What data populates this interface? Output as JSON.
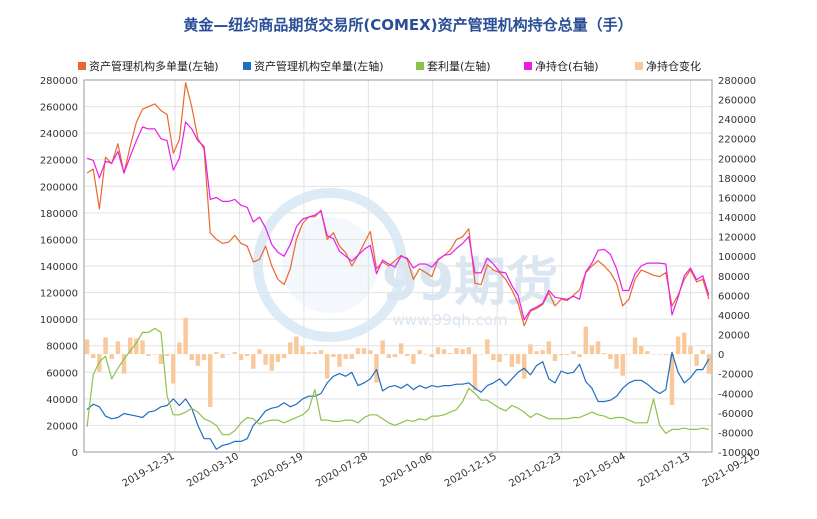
{
  "chart_data": {
    "type": "bar+line",
    "title": "黄金—纽约商品期货交易所(COMEX)资产管理机构持仓总量（手）",
    "watermark": "99期货",
    "watermark_url": "www.99qh.com",
    "legend_position": "top",
    "grid": true,
    "x_tick_labels": [
      "2019-12-31",
      "2020-03-10",
      "2020-05-19",
      "2020-07-28",
      "2020-10-06",
      "2020-12-15",
      "2021-02-23",
      "2021-05-04",
      "2021-07-13",
      "2021-09-21"
    ],
    "left_axis": {
      "min": 0,
      "max": 280000,
      "step": 20000
    },
    "right_axis": {
      "min": -100000,
      "max": 280000,
      "step": 20000
    },
    "series": [
      {
        "name": "资产管理机构多单量(左轴)",
        "color": "#e8692e",
        "type": "line",
        "axis": "left",
        "values": [
          210000,
          213000,
          183000,
          222000,
          217000,
          232000,
          210000,
          230000,
          248000,
          258000,
          260000,
          262000,
          257000,
          254000,
          225000,
          235000,
          278000,
          260000,
          236000,
          228000,
          165000,
          160000,
          157000,
          158000,
          163000,
          157000,
          155000,
          143000,
          145000,
          155000,
          140000,
          130000,
          126000,
          138000,
          160000,
          172000,
          177000,
          177000,
          182000,
          160000,
          165000,
          155000,
          150000,
          140000,
          148000,
          157000,
          166000,
          138000,
          143000,
          140000,
          144000,
          148000,
          145000,
          130000,
          138000,
          135000,
          132000,
          145000,
          148000,
          152000,
          160000,
          162000,
          168000,
          127000,
          126000,
          141000,
          137000,
          135000,
          130000,
          122000,
          112000,
          95000,
          106000,
          108000,
          111000,
          120000,
          110000,
          115000,
          114000,
          118000,
          122000,
          135000,
          140000,
          144000,
          140000,
          135000,
          127000,
          110000,
          115000,
          130000,
          137000,
          135000,
          133000,
          132000,
          135000,
          110000,
          118000,
          130000,
          137000,
          128000,
          130000,
          115000
        ]
      },
      {
        "name": "资产管理机构空单量(左轴)",
        "color": "#1f6fbf",
        "type": "line",
        "axis": "left",
        "values": [
          32000,
          36000,
          34000,
          27000,
          25000,
          26000,
          29000,
          28000,
          27000,
          26000,
          30000,
          31000,
          34000,
          35000,
          40000,
          35000,
          40000,
          33000,
          20000,
          10000,
          10000,
          2000,
          5000,
          6000,
          8000,
          8000,
          10000,
          20000,
          25000,
          31000,
          33000,
          34000,
          37000,
          34000,
          36000,
          40000,
          42000,
          42000,
          44000,
          52000,
          57000,
          59000,
          57000,
          60000,
          50000,
          52000,
          55000,
          62000,
          46000,
          49000,
          50000,
          48000,
          51000,
          47000,
          50000,
          48000,
          50000,
          49000,
          50000,
          50000,
          51000,
          51000,
          52000,
          48000,
          45000,
          50000,
          52000,
          55000,
          50000,
          55000,
          60000,
          63000,
          58000,
          65000,
          68000,
          55000,
          52000,
          61000,
          59000,
          60000,
          66000,
          53000,
          48000,
          38000,
          38000,
          39000,
          42000,
          48000,
          52000,
          54000,
          54000,
          51000,
          47000,
          44000,
          47000,
          75000,
          60000,
          52000,
          56000,
          62000,
          62000,
          70000
        ]
      },
      {
        "name": "套利量(左轴)",
        "color": "#8dc24a",
        "type": "line",
        "axis": "left",
        "values": [
          19000,
          58000,
          68000,
          72000,
          55000,
          63000,
          70000,
          76000,
          82000,
          90000,
          90000,
          93000,
          90000,
          42000,
          28000,
          28000,
          30000,
          33000,
          30000,
          25000,
          23000,
          20000,
          13000,
          13000,
          16000,
          22000,
          26000,
          25000,
          21000,
          23000,
          24000,
          24000,
          22000,
          24000,
          26000,
          28000,
          32000,
          47000,
          24000,
          24000,
          23000,
          23000,
          24000,
          24000,
          22000,
          26000,
          28000,
          28000,
          25000,
          22000,
          20000,
          22000,
          24000,
          23000,
          25000,
          24000,
          27000,
          27000,
          28000,
          30000,
          32000,
          38000,
          48000,
          44000,
          39000,
          39000,
          36000,
          33000,
          31000,
          35000,
          33000,
          30000,
          26000,
          29000,
          27000,
          25000,
          25000,
          25000,
          25000,
          26000,
          26000,
          28000,
          30000,
          28000,
          27000,
          25000,
          26000,
          26000,
          24000,
          22000,
          22000,
          22000,
          40000,
          20000,
          14000,
          17000,
          17000,
          18000,
          17000,
          17000,
          18000,
          17000
        ]
      },
      {
        "name": "净持仓(右轴)",
        "color": "#e81ee8",
        "type": "line",
        "axis": "right",
        "values": [
          200000,
          198000,
          180000,
          197000,
          195000,
          207000,
          185000,
          202000,
          218000,
          232000,
          230000,
          230000,
          220000,
          218000,
          188000,
          200000,
          237000,
          230000,
          218000,
          212000,
          158000,
          160000,
          156000,
          156000,
          158000,
          152000,
          150000,
          135000,
          140000,
          129000,
          112000,
          104000,
          100000,
          112000,
          130000,
          138000,
          140000,
          142000,
          146000,
          121000,
          118000,
          105000,
          100000,
          95000,
          101000,
          107000,
          111000,
          82000,
          96000,
          92000,
          89000,
          100000,
          98000,
          88000,
          92000,
          92000,
          89000,
          96000,
          101000,
          102000,
          108000,
          113000,
          120000,
          83000,
          83000,
          98000,
          92000,
          84000,
          83000,
          70000,
          60000,
          35000,
          45000,
          48000,
          52000,
          65000,
          58000,
          57000,
          56000,
          59000,
          56000,
          84000,
          93000,
          106000,
          107000,
          102000,
          87000,
          65000,
          65000,
          82000,
          90000,
          93000,
          93000,
          93000,
          92000,
          40000,
          58000,
          80000,
          88000,
          76000,
          80000,
          60000
        ]
      },
      {
        "name": "净持仓变化",
        "color": "#f9c89b",
        "type": "bar",
        "axis": "right",
        "values": [
          15000,
          -4000,
          -18000,
          17000,
          -5000,
          13000,
          -20000,
          17000,
          16000,
          14000,
          -2000,
          0,
          -10000,
          -2000,
          -30000,
          12000,
          37000,
          -6000,
          -12000,
          -6000,
          -54000,
          2000,
          -4000,
          0,
          2000,
          -6000,
          -2000,
          -15000,
          5000,
          -11000,
          -17000,
          -8000,
          -4000,
          12000,
          18000,
          8000,
          2000,
          2000,
          4000,
          -25000,
          -3000,
          -13000,
          -5000,
          -5000,
          6000,
          6000,
          4000,
          -29000,
          14000,
          -4000,
          -3000,
          11000,
          -2000,
          -10000,
          4000,
          0,
          -3000,
          7000,
          5000,
          1000,
          6000,
          5000,
          7000,
          -37000,
          0,
          15000,
          -6000,
          -8000,
          -1000,
          -13000,
          -10000,
          -25000,
          10000,
          3000,
          4000,
          13000,
          -7000,
          -1000,
          -1000,
          3000,
          -3000,
          28000,
          9000,
          13000,
          1000,
          -5000,
          -15000,
          -22000,
          0,
          17000,
          8000,
          3000,
          0,
          0,
          -1000,
          -52000,
          18000,
          22000,
          8000,
          -12000,
          4000,
          -20000
        ]
      }
    ]
  }
}
